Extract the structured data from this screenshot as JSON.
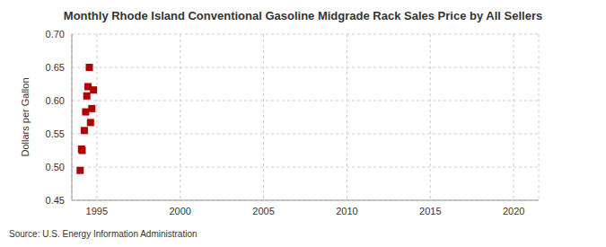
{
  "chart_data": {
    "type": "scatter",
    "title": "Monthly Rhode Island Conventional Gasoline Midgrade Rack Sales Price by All Sellers",
    "y_label": "Dollars per Gallon",
    "source": "Source: U.S. Energy Information Administration",
    "x": [
      1994.0,
      1994.08,
      1994.12,
      1994.25,
      1994.33,
      1994.4,
      1994.47,
      1994.55,
      1994.62,
      1994.7,
      1994.8
    ],
    "values": [
      0.495,
      0.527,
      0.525,
      0.555,
      0.583,
      0.607,
      0.621,
      0.65,
      0.567,
      0.588,
      0.616
    ],
    "color": "#b00000",
    "marker": "square",
    "xlim": [
      1993.5,
      2021.5
    ],
    "xticks": [
      1995,
      2000,
      2005,
      2010,
      2015,
      2020
    ],
    "ylim": [
      0.45,
      0.7
    ],
    "yticks": [
      0.45,
      {
        "value": 0.5,
        "label": "0.50"
      },
      0.55,
      {
        "value": 0.6,
        "label": "0.60"
      },
      0.65,
      {
        "value": 0.7,
        "label": "0.70"
      }
    ],
    "grid": true
  }
}
